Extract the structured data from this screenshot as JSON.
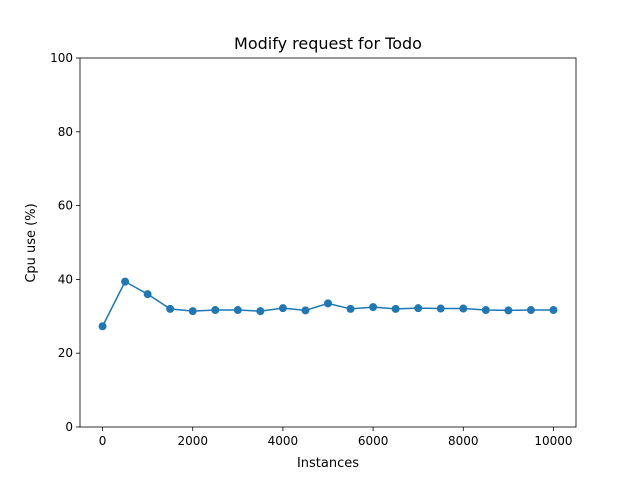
{
  "chart_data": {
    "type": "line",
    "title": "Modify request for Todo",
    "xlabel": "Instances",
    "ylabel": "Cpu use (%)",
    "xlim": [
      -500,
      10500
    ],
    "ylim": [
      0,
      100
    ],
    "xticks": [
      0,
      2000,
      4000,
      6000,
      8000,
      10000
    ],
    "yticks": [
      0,
      20,
      40,
      60,
      80,
      100
    ],
    "grid": false,
    "series": [
      {
        "color": "#1f77b4",
        "marker": "circle",
        "x": [
          0,
          500,
          1000,
          1500,
          2000,
          2500,
          3000,
          3500,
          4000,
          4500,
          5000,
          5500,
          6000,
          6500,
          7000,
          7500,
          8000,
          8500,
          9000,
          9500,
          10000
        ],
        "y": [
          27.3,
          39.4,
          36.0,
          32.0,
          31.4,
          31.7,
          31.7,
          31.4,
          32.2,
          31.6,
          33.5,
          32.0,
          32.5,
          32.0,
          32.2,
          32.1,
          32.1,
          31.7,
          31.6,
          31.7,
          31.7
        ]
      }
    ]
  }
}
